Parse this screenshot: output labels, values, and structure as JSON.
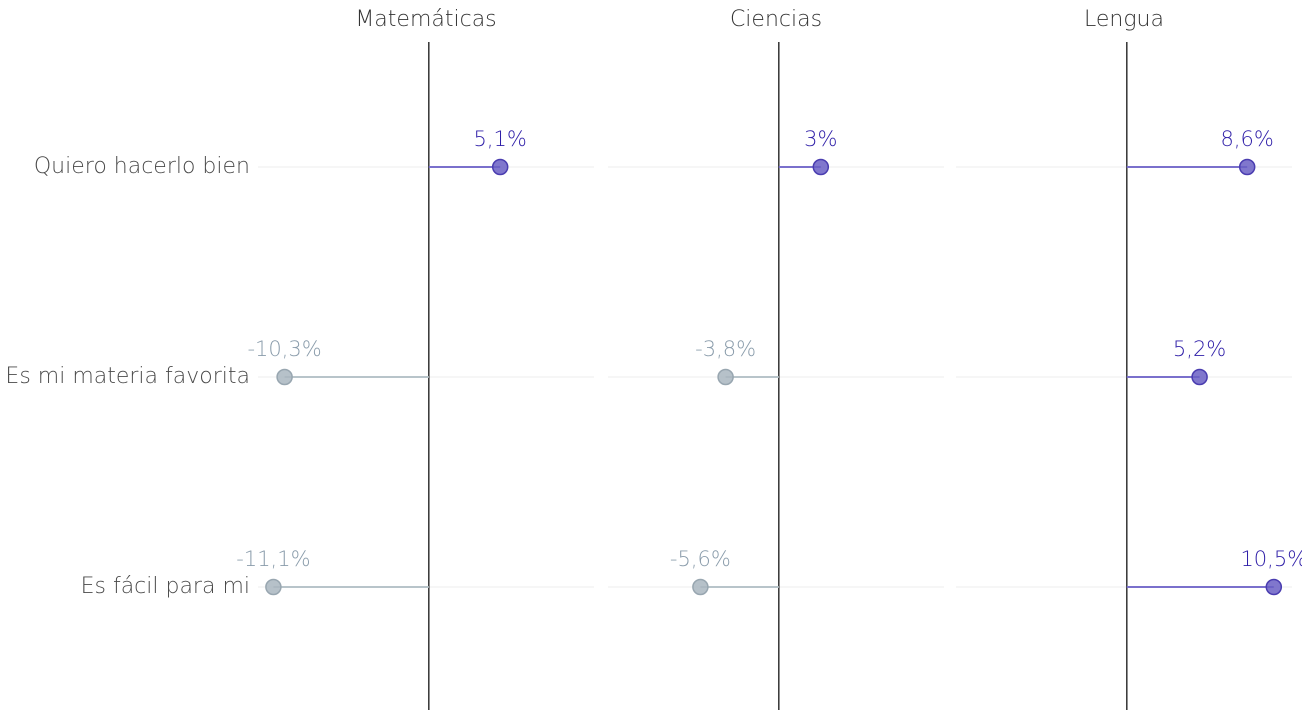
{
  "chart_data": {
    "type": "lollipop",
    "categories": [
      "Quiero hacerlo bien",
      "Es mi materia favorita",
      "Es fácil para mi"
    ],
    "series": [
      {
        "name": "Matemáticas",
        "values": [
          5.1,
          -10.3,
          -11.1
        ],
        "value_labels": [
          "5,1%",
          "-10,3%",
          "-11,1%"
        ]
      },
      {
        "name": "Ciencias",
        "values": [
          3,
          -3.8,
          -5.6
        ],
        "value_labels": [
          "3%",
          "-3,8%",
          "-5,6%"
        ]
      },
      {
        "name": "Lengua",
        "values": [
          8.6,
          5.2,
          10.5
        ],
        "value_labels": [
          "8,6%",
          "5,2%",
          "10,5%"
        ]
      }
    ],
    "xlim": [
      -12.2,
      11.8
    ],
    "positive_color": "#2f1fa8",
    "negative_color": "#8a9cab"
  }
}
